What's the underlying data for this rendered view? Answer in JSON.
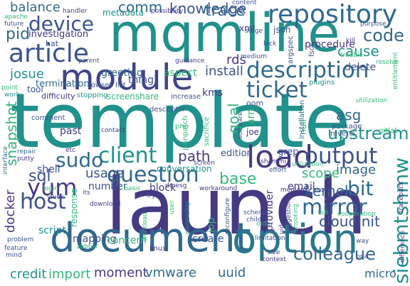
{
  "cloud": {
    "background": "#ffffff",
    "palette": [
      "#440154",
      "#443a83",
      "#31688e",
      "#21918c",
      "#35b779",
      "#90d743",
      "#fde725"
    ],
    "words": [
      {
        "text": "template",
        "color": "#21918c"
      },
      {
        "text": "launch",
        "color": "#443a83"
      },
      {
        "text": "mqmline",
        "color": "#21918c"
      },
      {
        "text": "document",
        "color": "#31688e"
      },
      {
        "text": "option",
        "color": "#2a788e"
      },
      {
        "text": "module",
        "color": "#414487"
      },
      {
        "text": "repository",
        "color": "#31688e"
      },
      {
        "text": "article",
        "color": "#3b528b"
      },
      {
        "text": "description",
        "color": "#31688e"
      },
      {
        "text": "load",
        "color": "#443a83"
      },
      {
        "text": "ticket",
        "color": "#31688e"
      },
      {
        "text": "output",
        "color": "#3b528b"
      },
      {
        "text": "question",
        "color": "#31688e"
      },
      {
        "text": "client",
        "color": "#21918c"
      },
      {
        "text": "device",
        "color": "#3b528b"
      },
      {
        "text": "sudo",
        "color": "#31688e"
      },
      {
        "text": "yum",
        "color": "#443a83"
      },
      {
        "text": "host",
        "color": "#3b528b"
      },
      {
        "text": "mirror",
        "color": "#31688e"
      },
      {
        "text": "bit",
        "color": "#31688e"
      },
      {
        "text": "siebmtshmw",
        "color": "#21918c"
      },
      {
        "text": "kernel",
        "color": "#31688e"
      },
      {
        "text": "colleague",
        "color": "#31688e"
      },
      {
        "text": "upstream",
        "color": "#21918c"
      },
      {
        "text": "cloudinit",
        "color": "#3b528b"
      },
      {
        "text": "base",
        "color": "#35b779"
      },
      {
        "text": "image",
        "color": "#31688e"
      },
      {
        "text": "code",
        "color": "#31688e"
      },
      {
        "text": "knowledge",
        "color": "#3b528b"
      },
      {
        "text": "balance",
        "color": "#31688e"
      },
      {
        "text": "comm",
        "color": "#31688e"
      },
      {
        "text": "trace",
        "color": "#31688e"
      },
      {
        "text": "pid",
        "color": "#31688e"
      },
      {
        "text": "investigation",
        "color": "#443a83"
      },
      {
        "text": "sql",
        "color": "#3b528b"
      },
      {
        "text": "snapshot",
        "color": "#35b779"
      },
      {
        "text": "josue",
        "color": "#21918c"
      },
      {
        "text": "cause",
        "color": "#21918c"
      },
      {
        "text": "install",
        "color": "#3b528b"
      },
      {
        "text": "rds",
        "color": "#443a83"
      },
      {
        "text": "goal",
        "color": "#35b779"
      },
      {
        "text": "asg",
        "color": "#31688e"
      },
      {
        "text": "scope",
        "color": "#35b779"
      },
      {
        "text": "path",
        "color": "#443a83"
      },
      {
        "text": "usage",
        "color": "#3b528b"
      },
      {
        "text": "conversation",
        "color": "#21918c"
      },
      {
        "text": "number",
        "color": "#3b528b"
      },
      {
        "text": "block",
        "color": "#443a83"
      },
      {
        "text": "email",
        "color": "#443a83"
      },
      {
        "text": "docker",
        "color": "#443a83"
      },
      {
        "text": "script",
        "color": "#21918c"
      },
      {
        "text": "mapping",
        "color": "#3b528b"
      },
      {
        "text": "credit",
        "color": "#21918c"
      },
      {
        "text": "import",
        "color": "#35b779"
      },
      {
        "text": "moment",
        "color": "#443a83"
      },
      {
        "text": "vmware",
        "color": "#31688e"
      },
      {
        "text": "uuid",
        "color": "#31688e"
      },
      {
        "text": "micro",
        "color": "#31688e"
      },
      {
        "text": "concern",
        "color": "#35b779"
      },
      {
        "text": "create",
        "color": "#3b528b"
      },
      {
        "text": "provider",
        "color": "#443a83"
      },
      {
        "text": "iop",
        "color": "#35b779"
      },
      {
        "text": "greeting",
        "color": "#31688e"
      },
      {
        "text": "procedure",
        "color": "#443a83"
      },
      {
        "text": "delete",
        "color": "#3b528b"
      },
      {
        "text": "past",
        "color": "#443a83"
      },
      {
        "text": "shell",
        "color": "#3b528b"
      },
      {
        "text": "edition",
        "color": "#3b528b"
      },
      {
        "text": "grep",
        "color": "#3b528b"
      },
      {
        "text": "arn",
        "color": "#35b779"
      },
      {
        "text": "null",
        "color": "#35b779"
      },
      {
        "text": "kms",
        "color": "#443a83"
      },
      {
        "text": "aspect",
        "color": "#35b779"
      },
      {
        "text": "thing",
        "color": "#3b528b"
      },
      {
        "text": "screenshare",
        "color": "#35b779"
      },
      {
        "text": "json",
        "color": "#3b528b"
      },
      {
        "text": "xml",
        "color": "#443a83"
      },
      {
        "text": "metadata",
        "color": "#21918c"
      },
      {
        "text": "handler",
        "color": "#443a83"
      },
      {
        "text": "apache",
        "color": "#35b779"
      },
      {
        "text": "future",
        "color": "#3b528b"
      },
      {
        "text": "hat",
        "color": "#3b528b"
      },
      {
        "text": "parent",
        "color": "#3b528b"
      },
      {
        "text": "termination",
        "color": "#31688e"
      },
      {
        "text": "rowset",
        "color": "#3b528b"
      },
      {
        "text": "list",
        "color": "#3b528b"
      },
      {
        "text": "tool",
        "color": "#3b528b"
      },
      {
        "text": "difficulty",
        "color": "#443a83"
      },
      {
        "text": "stopping",
        "color": "#21918c"
      },
      {
        "text": "point",
        "color": "#35b779"
      },
      {
        "text": "work",
        "color": "#21918c"
      },
      {
        "text": "increase",
        "color": "#3b528b"
      },
      {
        "text": "comment",
        "color": "#3b528b"
      },
      {
        "text": "contact",
        "color": "#443a83"
      },
      {
        "text": "etc",
        "color": "#443a83"
      },
      {
        "text": "repair",
        "color": "#31688e"
      },
      {
        "text": "putty",
        "color": "#443a83"
      },
      {
        "text": "interface",
        "color": "#31688e"
      },
      {
        "text": "descriptor",
        "color": "#3b528b"
      },
      {
        "text": "jsonpatch",
        "color": "#35b779"
      },
      {
        "text": "php",
        "color": "#35b779"
      },
      {
        "text": "sacrifice",
        "color": "#35b779"
      },
      {
        "text": "screen",
        "color": "#443a83"
      },
      {
        "text": "software",
        "color": "#3b528b"
      },
      {
        "text": "joe",
        "color": "#443a83"
      },
      {
        "text": "oom",
        "color": "#3b528b"
      },
      {
        "text": "installation",
        "color": "#31688e"
      },
      {
        "text": "package",
        "color": "#3b528b"
      },
      {
        "text": "reverts",
        "color": "#3b528b"
      },
      {
        "text": "gitlab",
        "color": "#35b779"
      },
      {
        "text": "utilization",
        "color": "#35b779"
      },
      {
        "text": "plugins",
        "color": "#21918c"
      },
      {
        "text": "kill",
        "color": "#443a83"
      },
      {
        "text": "fsck",
        "color": "#3b528b"
      },
      {
        "text": "argspec",
        "color": "#3b528b"
      },
      {
        "text": "lack",
        "color": "#3b528b"
      },
      {
        "text": "medium",
        "color": "#3b528b"
      },
      {
        "text": "guidance",
        "color": "#443a83"
      },
      {
        "text": "stage",
        "color": "#3b528b"
      },
      {
        "text": "purpose",
        "color": "#3b528b"
      },
      {
        "text": "trouble",
        "color": "#35b779"
      },
      {
        "text": "resolve",
        "color": "#35b779"
      },
      {
        "text": "entitlement",
        "color": "#35b779"
      },
      {
        "text": "content",
        "color": "#3b528b"
      },
      {
        "text": "possibility",
        "color": "#443a83"
      },
      {
        "text": "shammi",
        "color": "#443a83"
      },
      {
        "text": "effort",
        "color": "#3b528b"
      },
      {
        "text": "utilization",
        "color": "#35b779"
      },
      {
        "text": "login",
        "color": "#35b779"
      },
      {
        "text": "basis",
        "color": "#35b779"
      },
      {
        "text": "dmesg",
        "color": "#443a83"
      },
      {
        "text": "workaround",
        "color": "#443a83"
      },
      {
        "text": "meduim",
        "color": "#443a83"
      },
      {
        "text": "score",
        "color": "#443a83"
      },
      {
        "text": "traceback",
        "color": "#443a83"
      },
      {
        "text": "vivek",
        "color": "#443a83"
      },
      {
        "text": "its",
        "color": "#3b528b"
      },
      {
        "text": "download",
        "color": "#443a83"
      },
      {
        "text": "try",
        "color": "#3b528b"
      },
      {
        "text": "response",
        "color": "#35b779"
      },
      {
        "text": "user",
        "color": "#35b779"
      },
      {
        "text": "workload",
        "color": "#35b779"
      },
      {
        "text": "ownership",
        "color": "#21918c"
      },
      {
        "text": "reconfigure",
        "color": "#3b528b"
      },
      {
        "text": "schema",
        "color": "#3b528b"
      },
      {
        "text": "child",
        "color": "#3b528b"
      },
      {
        "text": "limitation",
        "color": "#3b528b"
      },
      {
        "text": "order",
        "color": "#35b779"
      },
      {
        "text": "suggestion",
        "color": "#3b528b"
      },
      {
        "text": "uid",
        "color": "#3b528b"
      },
      {
        "text": "ssh",
        "color": "#35b779"
      },
      {
        "text": "cooperation",
        "color": "#35b779"
      },
      {
        "text": "way",
        "color": "#3b528b"
      },
      {
        "text": "difference",
        "color": "#443a83"
      },
      {
        "text": "ppa",
        "color": "#3b528b"
      },
      {
        "text": "problem",
        "color": "#3b528b"
      },
      {
        "text": "feature",
        "color": "#3b528b"
      },
      {
        "text": "mind",
        "color": "#3b528b"
      },
      {
        "text": "zabbix",
        "color": "#35b779"
      },
      {
        "text": "size",
        "color": "#443a83"
      },
      {
        "text": "context",
        "color": "#443a83"
      },
      {
        "text": "linux",
        "color": "#443a83"
      },
      {
        "text": "shooting",
        "color": "#35b779"
      }
    ]
  }
}
